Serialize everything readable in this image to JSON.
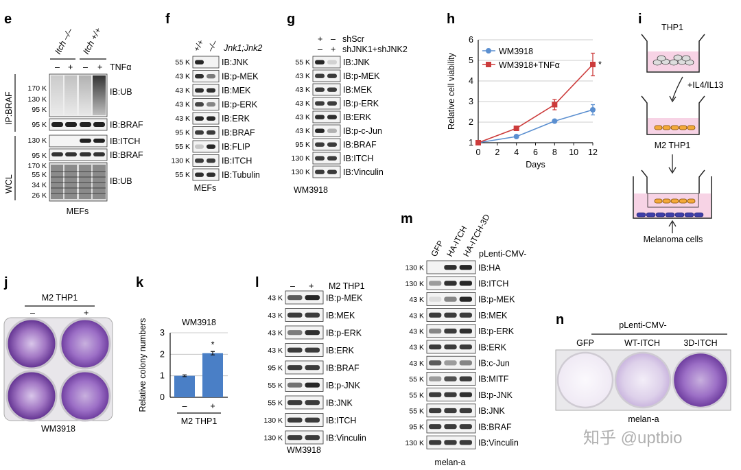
{
  "panels": {
    "e": {
      "label": "e",
      "groups": [
        "Itch –/–",
        "Itch +/+"
      ],
      "treatment": "TNFα",
      "lanes": [
        "–",
        "+",
        "–",
        "+"
      ],
      "sections": [
        "IP:BRAF",
        "WCL"
      ],
      "blots": [
        {
          "mw": [
            "170 K",
            "130 K",
            "95 K"
          ],
          "label": "IB:UB"
        },
        {
          "mw": [
            "95 K"
          ],
          "label": "IB:BRAF"
        },
        {
          "mw": [
            "130 K"
          ],
          "label": "IB:ITCH"
        },
        {
          "mw": [
            "95 K"
          ],
          "label": "IB:BRAF"
        },
        {
          "mw": [
            "170 K",
            "55 K",
            "34 K",
            "26 K"
          ],
          "label": "IB:UB"
        }
      ],
      "caption": "MEFs"
    },
    "f": {
      "label": "f",
      "lanes": [
        "+/+",
        "–/–"
      ],
      "genotype": "Jnk1;Jnk2",
      "blots": [
        {
          "mw": "55 K",
          "label": "IB:JNK"
        },
        {
          "mw": "43 K",
          "label": "IB:p-MEK"
        },
        {
          "mw": "43 K",
          "label": "IB:MEK"
        },
        {
          "mw": "43 K",
          "label": "IB:p-ERK"
        },
        {
          "mw": "43 K",
          "label": "IB:ERK"
        },
        {
          "mw": "95 K",
          "label": "IB:BRAF"
        },
        {
          "mw": "55 K",
          "label": "IB:FLIP"
        },
        {
          "mw": "130 K",
          "label": "IB:ITCH"
        },
        {
          "mw": "55 K",
          "label": "IB:Tubulin"
        }
      ],
      "caption": "MEFs"
    },
    "g": {
      "label": "g",
      "rows": [
        {
          "signs": [
            "+",
            "–"
          ],
          "label": "shScr"
        },
        {
          "signs": [
            "–",
            "+"
          ],
          "label": "shJNK1+shJNK2"
        }
      ],
      "blots": [
        {
          "mw": "55 K",
          "label": "IB:JNK"
        },
        {
          "mw": "43 K",
          "label": "IB:p-MEK"
        },
        {
          "mw": "43 K",
          "label": "IB:MEK"
        },
        {
          "mw": "43 K",
          "label": "IB:p-ERK"
        },
        {
          "mw": "43 K",
          "label": "IB:ERK"
        },
        {
          "mw": "43 K",
          "label": "IB:p-c-Jun"
        },
        {
          "mw": "95 K",
          "label": "IB:BRAF"
        },
        {
          "mw": "130 K",
          "label": "IB:ITCH"
        },
        {
          "mw": "130 K",
          "label": "IB:Vinculin"
        }
      ],
      "caption": "WM3918"
    },
    "h": {
      "label": "h",
      "chart_data": {
        "type": "line",
        "x": [
          0,
          4,
          8,
          12
        ],
        "xticks": [
          "0",
          "2",
          "4",
          "6",
          "8",
          "10",
          "12"
        ],
        "yticks": [
          "1",
          "2",
          "3",
          "4",
          "5",
          "6"
        ],
        "xlim": [
          0,
          12
        ],
        "ylim": [
          1,
          6
        ],
        "xlabel": "Days",
        "ylabel": "Relative cell viability",
        "grid": "horizontal",
        "legend": "top-left",
        "series": [
          {
            "name": "WM3918",
            "color": "#5b8fd0",
            "marker": "circle",
            "values": [
              1.0,
              1.3,
              2.05,
              2.6
            ],
            "errors": [
              0,
              0.05,
              0.05,
              0.25
            ]
          },
          {
            "name": "WM3918+TNFα",
            "color": "#cc3b3b",
            "marker": "square",
            "values": [
              1.0,
              1.7,
              2.85,
              4.8
            ],
            "errors": [
              0,
              0.05,
              0.25,
              0.55
            ]
          }
        ],
        "annotation": "*"
      }
    },
    "i": {
      "label": "i",
      "top": "THP1",
      "step1": "+IL4/IL13",
      "middle": "M2 THP1",
      "bottom": "Melanoma cells"
    },
    "j": {
      "label": "j",
      "treatment": "M2 THP1",
      "signs": [
        "–",
        "+"
      ],
      "caption": "WM3918"
    },
    "k": {
      "label": "k",
      "chart_data": {
        "type": "bar",
        "title": "WM3918",
        "categories": [
          "–",
          "+"
        ],
        "values": [
          1.0,
          2.05
        ],
        "errors": [
          0.04,
          0.08
        ],
        "ylim": [
          0,
          3
        ],
        "yticks": [
          "0",
          "1",
          "2",
          "3"
        ],
        "ylabel": "Relative colony numbers",
        "xlabel": "M2 THP1",
        "color": "#4a7fc6",
        "grid": "horizontal",
        "annotation": "*"
      }
    },
    "l": {
      "label": "l",
      "signs": [
        "–",
        "+"
      ],
      "treatment": "M2 THP1",
      "blots": [
        {
          "mw": "43 K",
          "label": "IB:p-MEK"
        },
        {
          "mw": "43 K",
          "label": "IB:MEK"
        },
        {
          "mw": "43 K",
          "label": "IB:p-ERK"
        },
        {
          "mw": "43 K",
          "label": "IB:ERK"
        },
        {
          "mw": "95 K",
          "label": "IB:BRAF"
        },
        {
          "mw": "55 K",
          "label": "IB:p-JNK"
        },
        {
          "mw": "55 K",
          "label": "IB:JNK"
        },
        {
          "mw": "130 K",
          "label": "IB:ITCH"
        },
        {
          "mw": "130 K",
          "label": "IB:Vinculin"
        }
      ],
      "caption": "WM3918"
    },
    "m": {
      "label": "m",
      "lanes": [
        "GFP",
        "HA-ITCH",
        "HA-ITCH-3D"
      ],
      "vector": "pLenti-CMV-",
      "blots": [
        {
          "mw": "130 K",
          "label": "IB:HA"
        },
        {
          "mw": "130 K",
          "label": "IB:ITCH"
        },
        {
          "mw": "43 K",
          "label": "IB:p-MEK"
        },
        {
          "mw": "43 K",
          "label": "IB:MEK"
        },
        {
          "mw": "43 K",
          "label": "IB:p-ERK"
        },
        {
          "mw": "43 K",
          "label": "IB:ERK"
        },
        {
          "mw": "43 K",
          "label": "IB:c-Jun"
        },
        {
          "mw": "55 K",
          "label": "IB:MITF"
        },
        {
          "mw": "55 K",
          "label": "IB:p-JNK"
        },
        {
          "mw": "55 K",
          "label": "IB:JNK"
        },
        {
          "mw": "95 K",
          "label": "IB:BRAF"
        },
        {
          "mw": "130 K",
          "label": "IB:Vinculin"
        }
      ],
      "caption": "melan-a"
    },
    "n": {
      "label": "n",
      "vector": "pLenti-CMV-",
      "wells": [
        "GFP",
        "WT-ITCH",
        "3D-ITCH"
      ],
      "caption": "melan-a"
    }
  },
  "watermark": "知乎 @uptbio"
}
